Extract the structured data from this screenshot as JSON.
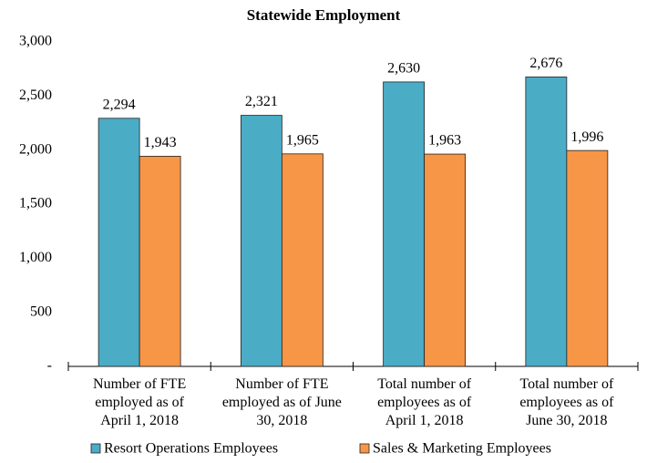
{
  "chart_data": {
    "type": "bar",
    "title": "Statewide Employment",
    "categories": [
      [
        "Number of FTE",
        "employed as of",
        "April 1, 2018"
      ],
      [
        "Number of FTE",
        "employed as of June",
        "30, 2018"
      ],
      [
        "Total number of",
        "employees as of",
        "April 1, 2018"
      ],
      [
        "Total number of",
        "employees as of",
        "June 30, 2018"
      ]
    ],
    "series": [
      {
        "name": "Resort Operations Employees",
        "color": "#4bacc6",
        "values": [
          2294,
          2321,
          2630,
          2676
        ],
        "value_labels": [
          "2,294",
          "2,321",
          "2,630",
          "2,676"
        ]
      },
      {
        "name": "Sales & Marketing Employees",
        "color": "#f79646",
        "values": [
          1943,
          1965,
          1963,
          1996
        ],
        "value_labels": [
          "1,943",
          "1,965",
          "1,963",
          "1,996"
        ]
      }
    ],
    "ylim": [
      0,
      3000
    ],
    "yticks": [
      {
        "value": 0,
        "label": "-"
      },
      500,
      {
        "value": 1000,
        "label": "1,000"
      },
      {
        "value": 1500,
        "label": "1,500"
      },
      {
        "value": 2000,
        "label": "2,000"
      },
      {
        "value": 2500,
        "label": "2,500"
      },
      {
        "value": 3000,
        "label": "3,000"
      }
    ],
    "grid": false,
    "legend": "bottom"
  }
}
